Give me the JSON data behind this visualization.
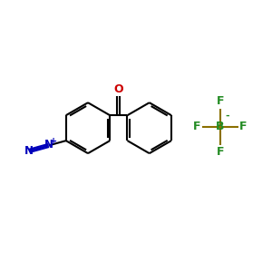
{
  "bg_color": "#FFFFFF",
  "bond_color": "#000000",
  "oxygen_color": "#CC0000",
  "nitrogen_color": "#0000BB",
  "boron_color": "#228B22",
  "boron_bond_color": "#8B7000",
  "fluorine_color": "#228B22",
  "line_width": 1.5,
  "figsize": [
    3.0,
    3.0
  ],
  "dpi": 100,
  "xlim": [
    0,
    10
  ],
  "ylim": [
    0,
    10
  ]
}
